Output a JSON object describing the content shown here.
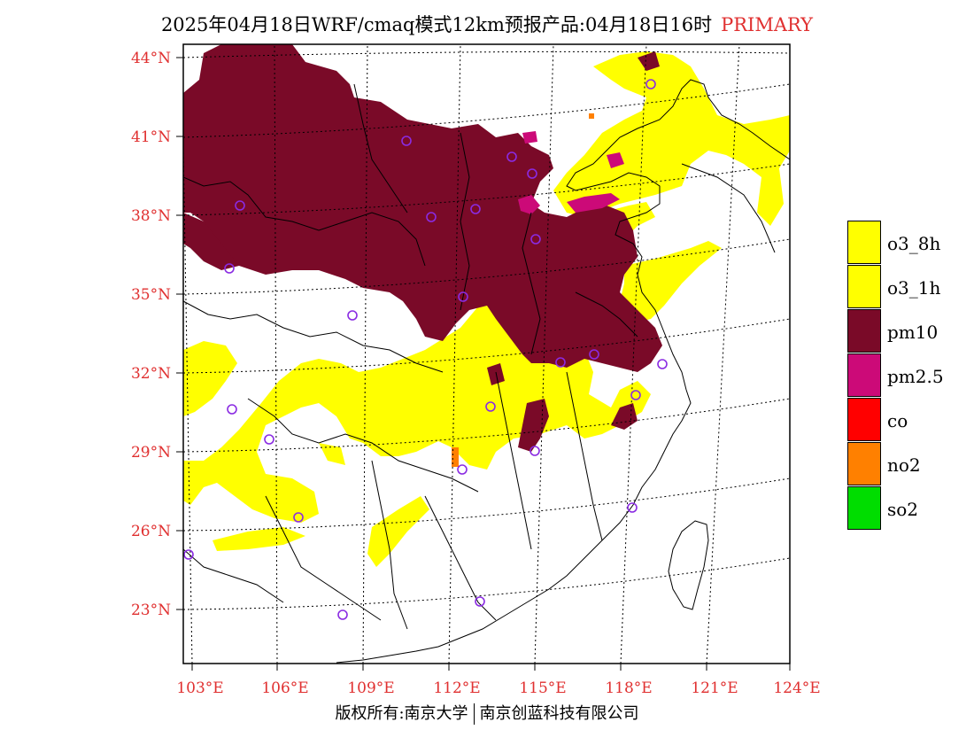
{
  "title": {
    "main": "2025年04月18日WRF/cmaq模式12km预报产品:04月18日16时",
    "tag": "PRIMARY"
  },
  "axes": {
    "lat_labels": [
      "44°N",
      "41°N",
      "38°N",
      "35°N",
      "32°N",
      "29°N",
      "26°N",
      "23°N"
    ],
    "lat_values": [
      44,
      41,
      38,
      35,
      32,
      29,
      26,
      23
    ],
    "lon_labels": [
      "103°E",
      "106°E",
      "109°E",
      "112°E",
      "115°E",
      "118°E",
      "121°E",
      "124°E"
    ],
    "lon_values": [
      103,
      106,
      109,
      112,
      115,
      118,
      121,
      124
    ]
  },
  "legend": [
    {
      "label": "o3_8h",
      "color": "#ffff00"
    },
    {
      "label": "o3_1h",
      "color": "#ffff00"
    },
    {
      "label": "pm10",
      "color": "#7a0a28"
    },
    {
      "label": "pm2.5",
      "color": "#cc0a78"
    },
    {
      "label": "co",
      "color": "#ff0000"
    },
    {
      "label": "no2",
      "color": "#ff8000"
    },
    {
      "label": "so2",
      "color": "#00dd00"
    }
  ],
  "copyright": {
    "left": "版权所有:南京大学",
    "right": "南京创蓝科技有限公司"
  },
  "colors": {
    "o3": "#ffff00",
    "pm10": "#7a0a28",
    "pm25": "#cc0a78",
    "no2": "#ff8000",
    "station": "#8a2be2",
    "axis_label": "#e03030"
  }
}
